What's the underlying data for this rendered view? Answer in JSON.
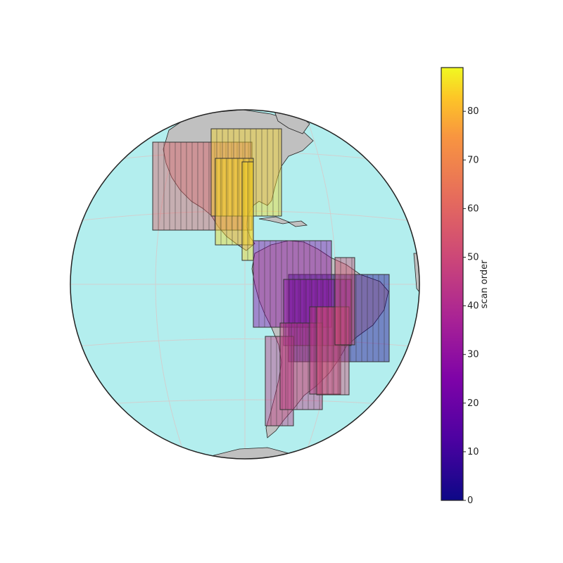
{
  "chart_data": {
    "type": "map",
    "projection": "orthographic",
    "colormap": "plasma",
    "ocean_color": "#b3eeee",
    "land_color": "#c0c0c0",
    "colorbar": {
      "label": "scan order",
      "min": 0,
      "max": 89,
      "ticks": [
        "0",
        "10",
        "20",
        "30",
        "40",
        "50",
        "60",
        "70",
        "80"
      ]
    },
    "scan_groups": [
      {
        "region": "central-brazil",
        "scan_order": 5
      },
      {
        "region": "northern-andes",
        "scan_order": 28
      },
      {
        "region": "southern-cone",
        "scan_order": 45
      },
      {
        "region": "eastern-brazil-strip",
        "scan_order": 52
      },
      {
        "region": "western-north-america",
        "scan_order": 58
      },
      {
        "region": "gulf-and-eastern-us",
        "scan_order": 85
      }
    ]
  }
}
